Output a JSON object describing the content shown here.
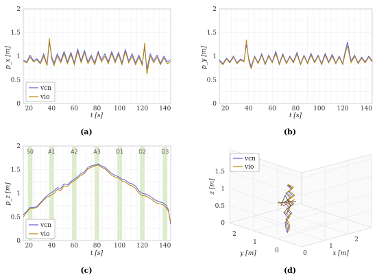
{
  "chart_data": [
    {
      "id": "a",
      "type": "line",
      "panel_label": "(a)",
      "ylabel": "p_x [m]",
      "xlabel": "t [s]",
      "xlim": [
        15,
        145
      ],
      "ylim": [
        0,
        2
      ],
      "xticks": [
        20,
        40,
        60,
        80,
        100,
        120,
        140
      ],
      "yticks": [
        0,
        0.5,
        1,
        1.5,
        2
      ],
      "grid": true,
      "legend_position": "bottom-left",
      "series": [
        {
          "name": "vcn",
          "color": "#5a5ad6",
          "x": [
            15,
            18,
            21,
            24,
            27,
            30,
            33,
            36,
            38,
            40,
            42,
            45,
            48,
            51,
            54,
            57,
            60,
            63,
            66,
            69,
            72,
            75,
            78,
            81,
            84,
            87,
            90,
            93,
            96,
            99,
            102,
            105,
            108,
            111,
            114,
            117,
            120,
            122,
            124,
            127,
            130,
            133,
            136,
            139,
            142,
            145
          ],
          "y": [
            0.92,
            0.88,
            1.02,
            0.9,
            0.95,
            0.86,
            1.05,
            0.82,
            1.3,
            1.0,
            0.85,
            1.05,
            0.9,
            1.1,
            0.88,
            1.08,
            0.86,
            1.15,
            0.9,
            1.12,
            0.88,
            1.02,
            0.86,
            1.1,
            0.92,
            1.05,
            0.88,
            1.1,
            0.9,
            1.08,
            0.86,
            1.14,
            0.9,
            1.05,
            0.86,
            1.02,
            0.84,
            1.2,
            0.72,
            1.05,
            0.9,
            1.02,
            0.85,
            1.0,
            0.88,
            0.92
          ]
        },
        {
          "name": "vio",
          "color": "#b8860b",
          "x": [
            15,
            18,
            21,
            24,
            27,
            30,
            33,
            36,
            38,
            40,
            42,
            45,
            48,
            51,
            54,
            57,
            60,
            63,
            66,
            69,
            72,
            75,
            78,
            81,
            84,
            87,
            90,
            93,
            96,
            99,
            102,
            105,
            108,
            111,
            114,
            117,
            120,
            122,
            124,
            127,
            130,
            133,
            136,
            139,
            142,
            145
          ],
          "y": [
            0.9,
            0.86,
            0.98,
            0.88,
            0.92,
            0.84,
            1.0,
            0.8,
            1.38,
            0.95,
            0.8,
            1.0,
            0.86,
            1.05,
            0.84,
            1.04,
            0.82,
            1.1,
            0.86,
            1.08,
            0.84,
            0.98,
            0.82,
            1.06,
            0.88,
            1.0,
            0.84,
            1.06,
            0.86,
            1.04,
            0.82,
            1.1,
            0.86,
            1.0,
            0.82,
            0.98,
            0.8,
            1.28,
            0.62,
            1.0,
            0.86,
            0.98,
            0.82,
            0.96,
            0.84,
            0.88
          ]
        }
      ]
    },
    {
      "id": "b",
      "type": "line",
      "panel_label": "(b)",
      "ylabel": "p_y [m]",
      "xlabel": "t [s]",
      "xlim": [
        15,
        145
      ],
      "ylim": [
        0,
        2
      ],
      "xticks": [
        20,
        40,
        60,
        80,
        100,
        120,
        140
      ],
      "yticks": [
        0,
        0.5,
        1,
        1.5,
        2
      ],
      "grid": true,
      "legend_position": "",
      "series": [
        {
          "name": "vcn",
          "color": "#5a5ad6",
          "x": [
            15,
            18,
            21,
            24,
            27,
            30,
            33,
            36,
            38,
            40,
            42,
            45,
            48,
            51,
            54,
            57,
            60,
            63,
            66,
            69,
            72,
            75,
            78,
            81,
            84,
            87,
            90,
            93,
            96,
            99,
            102,
            105,
            108,
            111,
            114,
            117,
            120,
            122,
            124,
            127,
            130,
            133,
            136,
            139,
            142,
            145
          ],
          "y": [
            0.92,
            0.84,
            0.96,
            0.88,
            1.0,
            0.86,
            0.94,
            0.9,
            1.25,
            0.95,
            0.78,
            1.0,
            0.86,
            1.05,
            0.84,
            1.02,
            0.88,
            1.1,
            0.84,
            1.05,
            0.86,
            1.0,
            0.88,
            1.08,
            0.84,
            1.02,
            0.86,
            1.06,
            0.88,
            1.02,
            0.84,
            1.06,
            0.88,
            1.04,
            0.86,
            1.0,
            0.84,
            1.1,
            1.3,
            0.9,
            1.02,
            0.86,
            0.98,
            0.88,
            1.0,
            0.9
          ]
        },
        {
          "name": "vio",
          "color": "#b8860b",
          "x": [
            15,
            18,
            21,
            24,
            27,
            30,
            33,
            36,
            38,
            40,
            42,
            45,
            48,
            51,
            54,
            57,
            60,
            63,
            66,
            69,
            72,
            75,
            78,
            81,
            84,
            87,
            90,
            93,
            96,
            99,
            102,
            105,
            108,
            111,
            114,
            117,
            120,
            122,
            124,
            127,
            130,
            133,
            136,
            139,
            142,
            145
          ],
          "y": [
            0.9,
            0.82,
            0.94,
            0.86,
            0.98,
            0.84,
            0.92,
            0.88,
            1.35,
            0.9,
            0.74,
            0.98,
            0.84,
            1.02,
            0.82,
            1.0,
            0.86,
            1.06,
            0.82,
            1.02,
            0.84,
            0.98,
            0.86,
            1.04,
            0.82,
            1.0,
            0.84,
            1.02,
            0.86,
            1.0,
            0.82,
            1.02,
            0.86,
            1.0,
            0.84,
            0.98,
            0.82,
            1.05,
            1.22,
            0.86,
            1.0,
            0.84,
            0.96,
            0.86,
            0.98,
            0.88
          ]
        }
      ]
    },
    {
      "id": "c",
      "type": "line",
      "panel_label": "(c)",
      "ylabel": "p_z [m]",
      "xlabel": "t [s]",
      "xlim": [
        15,
        145
      ],
      "ylim": [
        0,
        2
      ],
      "xticks": [
        20,
        40,
        60,
        80,
        100,
        120,
        140
      ],
      "yticks": [
        0,
        0.5,
        1,
        1.5,
        2
      ],
      "grid": true,
      "legend_position": "bottom-left",
      "phase_bands": [
        {
          "label": "S0",
          "x0": 19,
          "x1": 23
        },
        {
          "label": "A1",
          "x0": 38,
          "x1": 42
        },
        {
          "label": "A2",
          "x0": 58,
          "x1": 62
        },
        {
          "label": "A3",
          "x0": 78,
          "x1": 82
        },
        {
          "label": "D1",
          "x0": 98,
          "x1": 102
        },
        {
          "label": "D2",
          "x0": 118,
          "x1": 122
        },
        {
          "label": "D3",
          "x0": 138,
          "x1": 142
        }
      ],
      "series": [
        {
          "name": "vcn",
          "color": "#5a5ad6",
          "x": [
            15,
            18,
            21,
            24,
            27,
            30,
            33,
            36,
            39,
            42,
            45,
            48,
            51,
            54,
            57,
            60,
            63,
            66,
            69,
            72,
            75,
            78,
            81,
            84,
            87,
            90,
            93,
            96,
            99,
            102,
            105,
            108,
            111,
            114,
            117,
            120,
            123,
            126,
            129,
            132,
            135,
            138,
            141,
            143,
            145
          ],
          "y": [
            0.55,
            0.62,
            0.7,
            0.7,
            0.72,
            0.8,
            0.88,
            0.95,
            1.0,
            1.05,
            1.12,
            1.1,
            1.2,
            1.18,
            1.25,
            1.3,
            1.35,
            1.42,
            1.45,
            1.55,
            1.58,
            1.6,
            1.62,
            1.58,
            1.55,
            1.48,
            1.42,
            1.38,
            1.35,
            1.3,
            1.28,
            1.22,
            1.2,
            1.15,
            1.05,
            1.0,
            0.98,
            0.95,
            0.9,
            0.85,
            0.82,
            0.8,
            0.75,
            0.65,
            0.35
          ]
        },
        {
          "name": "vio",
          "color": "#b8860b",
          "x": [
            15,
            18,
            21,
            24,
            27,
            30,
            33,
            36,
            39,
            42,
            45,
            48,
            51,
            54,
            57,
            60,
            63,
            66,
            69,
            72,
            75,
            78,
            81,
            84,
            87,
            90,
            93,
            96,
            99,
            102,
            105,
            108,
            111,
            114,
            117,
            120,
            123,
            126,
            129,
            132,
            135,
            138,
            141,
            143,
            145
          ],
          "y": [
            0.5,
            0.6,
            0.68,
            0.68,
            0.7,
            0.78,
            0.86,
            0.92,
            0.95,
            1.0,
            1.08,
            1.06,
            1.16,
            1.14,
            1.22,
            1.26,
            1.32,
            1.38,
            1.42,
            1.52,
            1.55,
            1.58,
            1.6,
            1.55,
            1.52,
            1.45,
            1.38,
            1.34,
            1.32,
            1.26,
            1.24,
            1.18,
            1.16,
            1.1,
            1.0,
            0.95,
            0.94,
            0.9,
            0.86,
            0.8,
            0.78,
            0.76,
            0.7,
            0.62,
            0.38
          ]
        }
      ]
    },
    {
      "id": "d",
      "type": "line3d",
      "panel_label": "(d)",
      "xlabel": "x [m]",
      "ylabel": "y [m]",
      "zlabel": "z [m]",
      "xticks": [
        0,
        1,
        2
      ],
      "yticks": [
        0,
        1,
        2
      ],
      "zticks": [
        0,
        0.5,
        1,
        1.5
      ],
      "legend_position": "top-left",
      "series": [
        {
          "name": "vcn",
          "color": "#5a5ad6"
        },
        {
          "name": "vio",
          "color": "#b8860b"
        }
      ]
    }
  ]
}
